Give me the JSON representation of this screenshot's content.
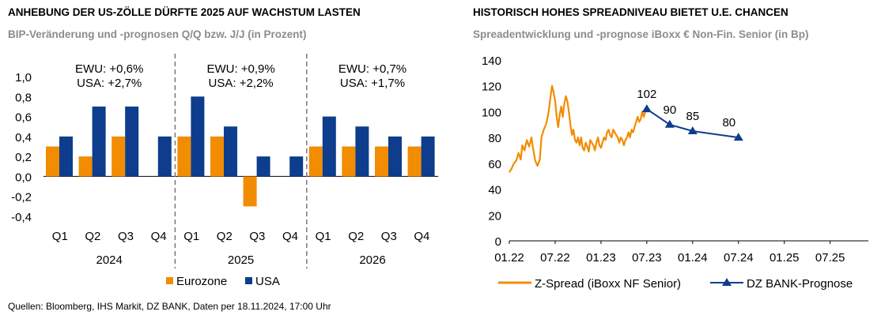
{
  "left": {
    "title": "ANHEBUNG DER US-ZÖLLE DÜRFTE 2025 AUF WACHSTUM LASTEN",
    "subtitle": "BIP-Veränderung und -prognosen Q/Q bzw. J/J (in Prozent)",
    "chart_data": {
      "type": "bar",
      "categories": [
        "Q1",
        "Q2",
        "Q3",
        "Q4",
        "Q1",
        "Q2",
        "Q3",
        "Q4",
        "Q1",
        "Q2",
        "Q3",
        "Q4"
      ],
      "years": [
        "2024",
        "2025",
        "2026"
      ],
      "ylim": [
        -0.4,
        1.0
      ],
      "yticks": [
        "1,0",
        "0,8",
        "0,6",
        "0,4",
        "0,2",
        "0,0",
        "-0,2",
        "-0,4"
      ],
      "series": [
        {
          "name": "Eurozone",
          "color": "#f28c00",
          "values": [
            0.3,
            0.2,
            0.4,
            null,
            0.4,
            0.4,
            -0.3,
            null,
            0.3,
            0.3,
            0.3,
            0.3
          ]
        },
        {
          "name": "USA",
          "color": "#0d3d8c",
          "values": [
            0.4,
            0.7,
            0.7,
            0.4,
            0.8,
            0.5,
            0.2,
            0.2,
            0.6,
            0.5,
            0.4,
            0.4
          ]
        }
      ],
      "annotations": [
        {
          "line1": "EWU: +0,6%",
          "line2": "USA: +2,7%"
        },
        {
          "line1": "EWU: +0,9%",
          "line2": "USA: +2,2%"
        },
        {
          "line1": "EWU: +0,7%",
          "line2": "USA: +1,7%"
        }
      ],
      "legend": [
        "Eurozone",
        "USA"
      ]
    }
  },
  "right": {
    "title": "HISTORISCH HOHES SPREADNIVEAU BIETET U.E. CHANCEN",
    "subtitle": "Spreadentwicklung und -prognose iBoxx € Non-Fin. Senior (in Bp)",
    "chart_data": {
      "type": "line",
      "ylim": [
        0,
        140
      ],
      "yticks": [
        "140",
        "120",
        "100",
        "80",
        "60",
        "40",
        "20",
        "0"
      ],
      "xticks": [
        "01.22",
        "07.22",
        "01.23",
        "07.23",
        "01.24",
        "07.24",
        "01.25",
        "07.25"
      ],
      "series": [
        {
          "name": "Z-Spread (iBoxx NF Senior)",
          "color": "#f28c00",
          "points": [
            [
              0,
              53
            ],
            [
              0.3,
              56
            ],
            [
              0.6,
              60
            ],
            [
              0.9,
              62
            ],
            [
              1.2,
              68
            ],
            [
              1.5,
              63
            ],
            [
              1.7,
              74
            ],
            [
              2,
              70
            ],
            [
              2.3,
              78
            ],
            [
              2.6,
              73
            ],
            [
              2.9,
              80
            ],
            [
              3.1,
              72
            ],
            [
              3.4,
              62
            ],
            [
              3.7,
              58
            ],
            [
              4,
              63
            ],
            [
              4.2,
              80
            ],
            [
              4.5,
              86
            ],
            [
              4.8,
              90
            ],
            [
              5,
              95
            ],
            [
              5.2,
              102
            ],
            [
              5.4,
              112
            ],
            [
              5.6,
              120
            ],
            [
              5.8,
              115
            ],
            [
              6,
              108
            ],
            [
              6.2,
              96
            ],
            [
              6.4,
              88
            ],
            [
              6.6,
              98
            ],
            [
              6.8,
              104
            ],
            [
              7,
              96
            ],
            [
              7.2,
              106
            ],
            [
              7.4,
              112
            ],
            [
              7.6,
              108
            ],
            [
              7.8,
              100
            ],
            [
              8,
              90
            ],
            [
              8.2,
              82
            ],
            [
              8.4,
              86
            ],
            [
              8.6,
              78
            ],
            [
              8.8,
              76
            ],
            [
              9,
              80
            ],
            [
              9.2,
              74
            ],
            [
              9.4,
              80
            ],
            [
              9.6,
              72
            ],
            [
              9.8,
              70
            ],
            [
              10,
              76
            ],
            [
              10.2,
              73
            ],
            [
              10.4,
              69
            ],
            [
              10.6,
              78
            ],
            [
              10.8,
              76
            ],
            [
              11,
              74
            ],
            [
              11.2,
              70
            ],
            [
              11.4,
              76
            ],
            [
              11.6,
              80
            ],
            [
              11.8,
              74
            ],
            [
              12,
              72
            ],
            [
              12.2,
              76
            ],
            [
              12.4,
              80
            ],
            [
              12.6,
              78
            ],
            [
              12.8,
              84
            ],
            [
              13,
              86
            ],
            [
              13.2,
              82
            ],
            [
              13.4,
              80
            ],
            [
              13.6,
              86
            ],
            [
              13.8,
              84
            ],
            [
              14,
              82
            ],
            [
              14.2,
              80
            ],
            [
              14.4,
              76
            ],
            [
              14.6,
              80
            ],
            [
              14.8,
              78
            ],
            [
              15,
              74
            ],
            [
              15.2,
              78
            ],
            [
              15.4,
              80
            ],
            [
              15.6,
              84
            ],
            [
              15.8,
              80
            ],
            [
              16,
              86
            ],
            [
              16.2,
              84
            ],
            [
              16.4,
              88
            ],
            [
              16.6,
              92
            ],
            [
              16.8,
              96
            ],
            [
              17,
              92
            ],
            [
              17.2,
              94
            ],
            [
              17.4,
              100
            ],
            [
              17.6,
              96
            ],
            [
              17.8,
              100
            ]
          ]
        },
        {
          "name": "DZ BANK-Prognose",
          "color": "#0d3d8c",
          "points": [
            [
              18,
              102
            ],
            [
              21,
              90
            ],
            [
              24,
              85
            ],
            [
              30,
              80
            ]
          ],
          "labels": [
            "102",
            "90",
            "85",
            "80"
          ]
        }
      ],
      "x_month_index_note": "",
      "legend": [
        "Z-Spread (iBoxx NF Senior)",
        "DZ BANK-Prognose"
      ]
    }
  },
  "source": "Quellen: Bloomberg, IHS Markit, DZ BANK, Daten per 18.11.2024, 17:00 Uhr"
}
